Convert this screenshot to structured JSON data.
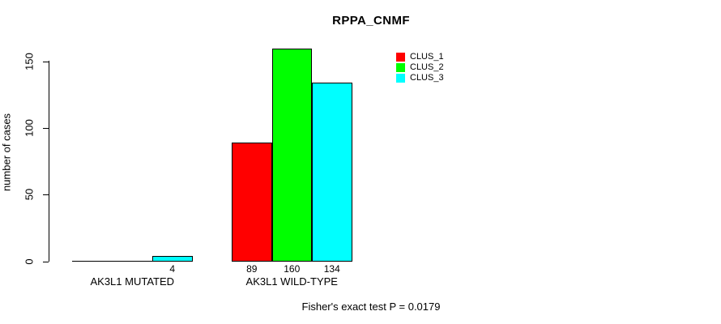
{
  "chart_data": {
    "type": "bar",
    "title": "RPPA_CNMF",
    "xlabel": "",
    "ylabel": "number of cases",
    "categories": [
      "AK3L1 MUTATED",
      "AK3L1 WILD-TYPE"
    ],
    "series": [
      {
        "name": "CLUS_1",
        "color": "#FF0000",
        "values": [
          0,
          89
        ]
      },
      {
        "name": "CLUS_2",
        "color": "#00FF00",
        "values": [
          0,
          160
        ]
      },
      {
        "name": "CLUS_3",
        "color": "#00FFFF",
        "values": [
          4,
          134
        ]
      }
    ],
    "bar_value_labels": [
      [
        "",
        "",
        "4"
      ],
      [
        "89",
        "160",
        "134"
      ]
    ],
    "yticks": [
      "0",
      "50",
      "100",
      "150"
    ],
    "ylim": [
      0,
      160
    ],
    "grid": false,
    "legend_position": "top-right",
    "legend_entries": [
      "CLUS_1",
      "CLUS_2",
      "CLUS_3"
    ],
    "annotation": "Fisher's exact test P = 0.0179"
  },
  "colors": {
    "background": "#FFFFFF",
    "text": "#000000",
    "axis": "#000000",
    "bar_outline": "#000000",
    "clus_1": "#FF0000",
    "clus_2": "#00FF00",
    "clus_3": "#00FFFF"
  }
}
